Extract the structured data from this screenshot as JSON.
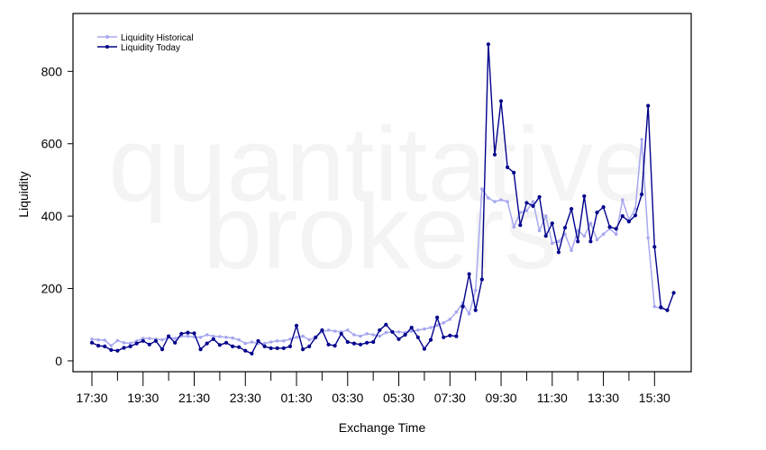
{
  "watermark": {
    "line1": "quantitative",
    "line2": "brokers"
  },
  "chart_data": {
    "type": "line",
    "title": "",
    "xlabel": "Exchange Time",
    "ylabel": "Liquidity",
    "ylim": [
      -30,
      960
    ],
    "yticks": [
      0,
      200,
      400,
      600,
      800
    ],
    "x_start_time": "17:00",
    "x_interval_minutes": 15,
    "x_tick_labels": [
      "17:30",
      "19:30",
      "21:30",
      "23:30",
      "01:30",
      "03:30",
      "05:30",
      "07:30",
      "09:30",
      "11:30",
      "13:30",
      "15:30"
    ],
    "x_tick_label_positions": [
      2,
      10,
      18,
      26,
      34,
      42,
      50,
      58,
      66,
      74,
      82,
      90
    ],
    "grid": false,
    "legend": {
      "position": "top-left"
    },
    "series": [
      {
        "name": "Liquidity Historical",
        "color": "#a8a8f0",
        "x_start": 2,
        "values": [
          60,
          58,
          57,
          42,
          56,
          50,
          48,
          55,
          62,
          62,
          60,
          58,
          65,
          62,
          68,
          68,
          66,
          65,
          72,
          68,
          67,
          65,
          63,
          58,
          48,
          52,
          48,
          48,
          52,
          55,
          55,
          60,
          65,
          68,
          58,
          65,
          80,
          85,
          82,
          80,
          85,
          72,
          68,
          75,
          72,
          68,
          78,
          80,
          80,
          78,
          82,
          85,
          88,
          92,
          98,
          105,
          115,
          135,
          160,
          130,
          195,
          475,
          450,
          440,
          445,
          440,
          370,
          410,
          415,
          440,
          360,
          400,
          325,
          330,
          350,
          305,
          360,
          345,
          380,
          335,
          350,
          365,
          350,
          445,
          390,
          420,
          612,
          340,
          150,
          145,
          140
        ]
      },
      {
        "name": "Liquidity Today",
        "color": "#00008b",
        "x_start": 2,
        "values": [
          50,
          42,
          40,
          30,
          28,
          36,
          40,
          48,
          55,
          45,
          55,
          32,
          68,
          50,
          75,
          78,
          76,
          32,
          48,
          60,
          44,
          50,
          40,
          38,
          28,
          20,
          55,
          40,
          35,
          35,
          35,
          40,
          97,
          32,
          40,
          65,
          85,
          45,
          42,
          75,
          52,
          48,
          45,
          50,
          52,
          85,
          100,
          80,
          60,
          72,
          92,
          65,
          33,
          58,
          120,
          65,
          70,
          68,
          150,
          240,
          140,
          225,
          875,
          570,
          718,
          535,
          520,
          375,
          437,
          428,
          453,
          345,
          380,
          300,
          368,
          420,
          330,
          455,
          330,
          410,
          425,
          370,
          365,
          400,
          385,
          402,
          460,
          705,
          315,
          148,
          140,
          188
        ]
      }
    ]
  }
}
